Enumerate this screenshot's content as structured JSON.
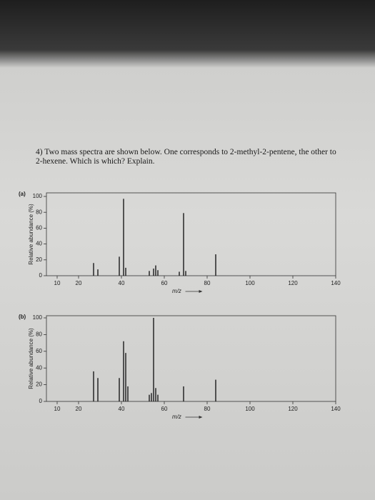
{
  "question": "4) Two mass spectra are shown below. One corresponds to 2-methyl-2-pentene, the other to 2-hexene. Which is which? Explain.",
  "chart_data": [
    {
      "type": "bar",
      "panel_label": "(a)",
      "ylabel": "Relative abundance (%)",
      "xlabel": "m/z",
      "x": [
        27,
        29,
        39,
        41,
        42,
        53,
        55,
        56,
        57,
        67,
        69,
        70,
        84
      ],
      "values": [
        16,
        8,
        24,
        97,
        10,
        6,
        9,
        13,
        7,
        5,
        79,
        6,
        27
      ],
      "color": "#1a1a1a",
      "xlim": [
        5,
        140
      ],
      "xticks": [
        10,
        20,
        40,
        60,
        80,
        100,
        120,
        140
      ],
      "ylim": [
        0,
        100
      ],
      "yticks": [
        0,
        20,
        40,
        60,
        80,
        100
      ]
    },
    {
      "type": "bar",
      "panel_label": "(b)",
      "ylabel": "Relative abundance (%)",
      "xlabel": "m/z",
      "x": [
        27,
        29,
        39,
        41,
        42,
        43,
        53,
        54,
        55,
        56,
        57,
        69,
        84
      ],
      "values": [
        36,
        28,
        28,
        72,
        58,
        18,
        8,
        10,
        100,
        16,
        8,
        18,
        26
      ],
      "color": "#1a1a1a",
      "xlim": [
        5,
        140
      ],
      "xticks": [
        10,
        20,
        40,
        60,
        80,
        100,
        120,
        140
      ],
      "ylim": [
        0,
        100
      ],
      "yticks": [
        0,
        20,
        40,
        60,
        80,
        100
      ]
    }
  ]
}
